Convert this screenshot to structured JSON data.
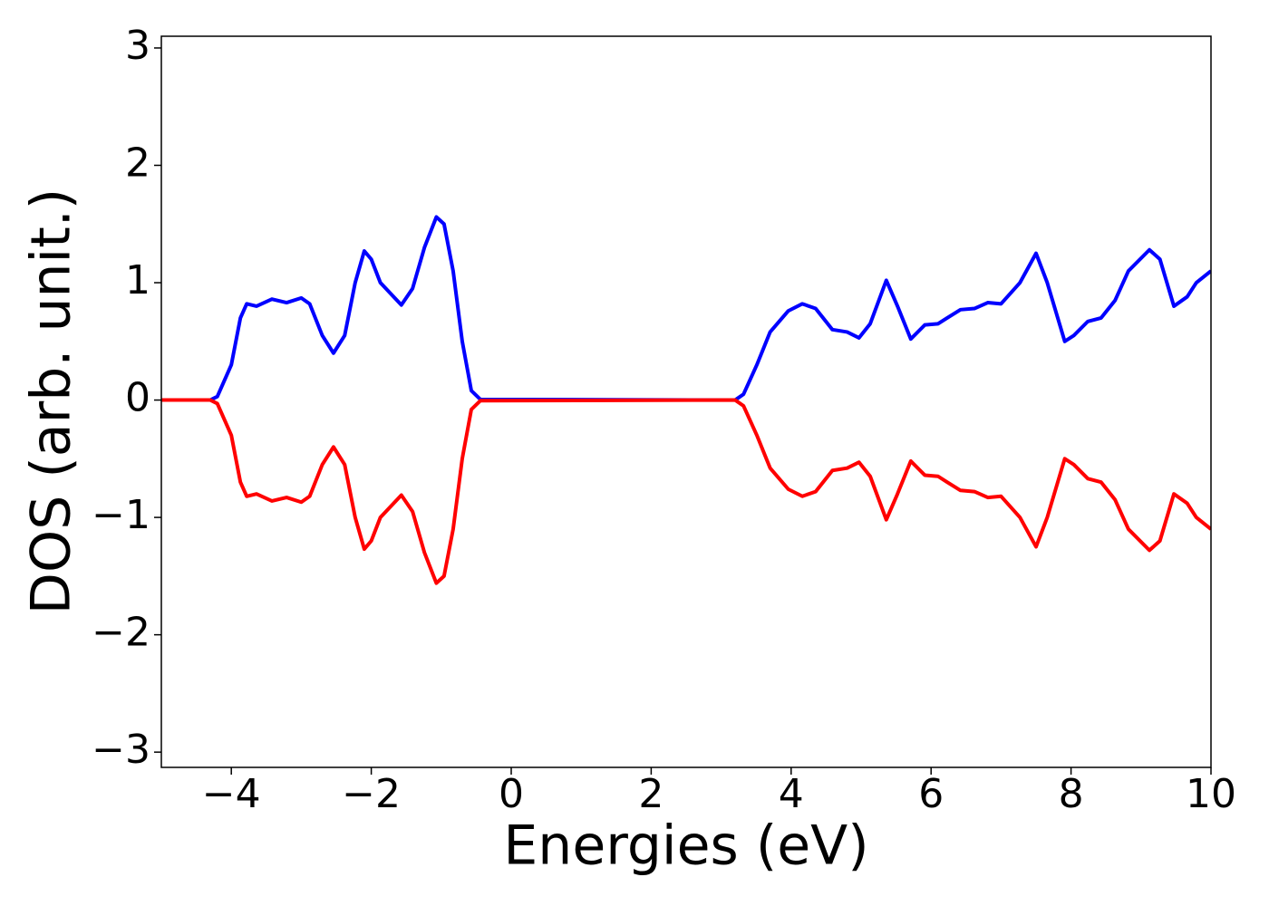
{
  "chart_data": {
    "type": "line",
    "xlabel": "Energies (eV)",
    "ylabel": "DOS (arb. unit.)",
    "x": [
      -5,
      -4.3,
      -4.2,
      -4.0,
      -3.87,
      -3.78,
      -3.64,
      -3.42,
      -3.21,
      -3.0,
      -2.88,
      -2.7,
      -2.54,
      -2.38,
      -2.23,
      -2.1,
      -2.0,
      -1.87,
      -1.57,
      -1.41,
      -1.24,
      -1.07,
      -0.96,
      -0.83,
      -0.7,
      -0.57,
      -0.44,
      3.2,
      3.32,
      3.51,
      3.7,
      3.96,
      4.16,
      4.35,
      4.59,
      4.8,
      4.97,
      5.13,
      5.36,
      5.52,
      5.71,
      5.91,
      6.1,
      6.23,
      6.42,
      6.62,
      6.81,
      7.0,
      7.27,
      7.5,
      7.66,
      7.91,
      8.04,
      8.24,
      8.43,
      8.63,
      8.82,
      9.12,
      9.27,
      9.47,
      9.66,
      9.79,
      10
    ],
    "series": [
      {
        "color": "#0000ff",
        "values": [
          0,
          0,
          0.03,
          0.3,
          0.7,
          0.82,
          0.8,
          0.86,
          0.83,
          0.87,
          0.82,
          0.55,
          0.4,
          0.55,
          1.0,
          1.27,
          1.2,
          1.0,
          0.81,
          0.95,
          1.3,
          1.56,
          1.5,
          1.1,
          0.5,
          0.08,
          0.005,
          0,
          0.05,
          0.3,
          0.58,
          0.76,
          0.82,
          0.78,
          0.6,
          0.58,
          0.53,
          0.65,
          1.02,
          0.8,
          0.52,
          0.64,
          0.65,
          0.7,
          0.77,
          0.78,
          0.83,
          0.82,
          1.0,
          1.25,
          1.0,
          0.5,
          0.55,
          0.67,
          0.7,
          0.85,
          1.1,
          1.28,
          1.2,
          0.8,
          0.88,
          1.0,
          1.1
        ]
      },
      {
        "color": "#ff0000",
        "values": [
          0,
          0,
          -0.03,
          -0.3,
          -0.7,
          -0.82,
          -0.8,
          -0.86,
          -0.83,
          -0.87,
          -0.82,
          -0.55,
          -0.4,
          -0.55,
          -1.0,
          -1.27,
          -1.2,
          -1.0,
          -0.81,
          -0.95,
          -1.3,
          -1.56,
          -1.5,
          -1.1,
          -0.5,
          -0.08,
          -0.005,
          0,
          -0.05,
          -0.3,
          -0.58,
          -0.76,
          -0.82,
          -0.78,
          -0.6,
          -0.58,
          -0.53,
          -0.65,
          -1.02,
          -0.8,
          -0.52,
          -0.64,
          -0.65,
          -0.7,
          -0.77,
          -0.78,
          -0.83,
          -0.82,
          -1.0,
          -1.25,
          -1.0,
          -0.5,
          -0.55,
          -0.67,
          -0.7,
          -0.85,
          -1.1,
          -1.28,
          -1.2,
          -0.8,
          -0.88,
          -1.0,
          -1.1
        ]
      }
    ],
    "xlim": [
      -5,
      10
    ],
    "xticks": [
      {
        "value": -4,
        "label": "−4"
      },
      {
        "value": -2,
        "label": "−2"
      },
      0,
      2,
      4,
      6,
      8,
      10
    ],
    "ylim": [
      -3.13,
      3.1
    ],
    "yticks": [
      {
        "value": -3,
        "label": "−3"
      },
      {
        "value": -2,
        "label": "−2"
      },
      {
        "value": -1,
        "label": "−1"
      },
      0,
      1,
      2,
      3
    ],
    "grid": false
  }
}
